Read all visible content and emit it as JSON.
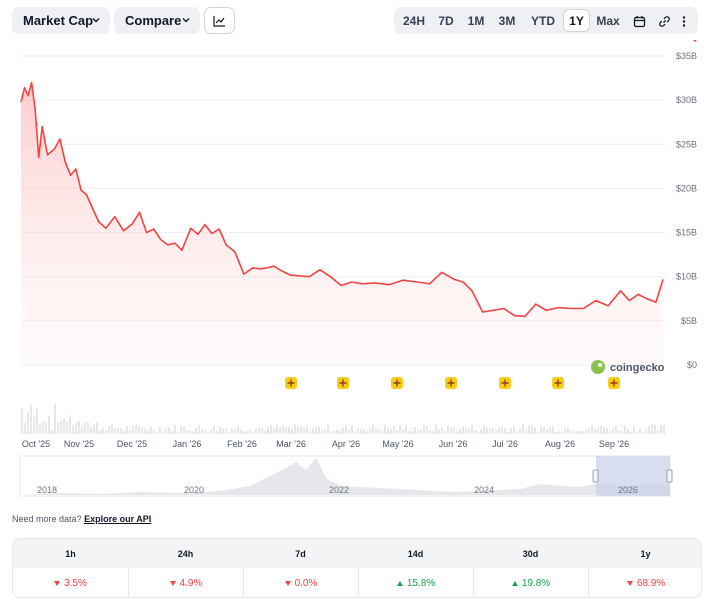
{
  "toolbar": {
    "metric_label": "Market Cap",
    "compare_label": "Compare",
    "chart_type_icon": "line-chart-icon",
    "ranges": [
      "24H",
      "7D",
      "1M",
      "3M",
      "YTD",
      "1Y",
      "Max"
    ],
    "active_range": "1Y",
    "tools": [
      "calendar-icon",
      "link-icon",
      "more-vertical-icon"
    ]
  },
  "brand": {
    "name": "coingecko"
  },
  "colors": {
    "line": "#ef4444",
    "area": "#fecaca",
    "nav_selection": "#c7d0e8",
    "up": "#16a34a",
    "down": "#ef4444"
  },
  "chart_data": {
    "type": "area",
    "title": "",
    "xlabel": "",
    "ylabel": "",
    "ylim": [
      0,
      35
    ],
    "y_unit": "B USD",
    "y_ticks": [
      "$35B",
      "$30B",
      "$25B",
      "$20B",
      "$15B",
      "$10B",
      "$5B",
      "$0"
    ],
    "x_ticks": [
      "Oct '25",
      "Nov '25",
      "Dec '25",
      "Jan '26",
      "Feb '26",
      "Mar '26",
      "Apr '26",
      "May '26",
      "Jun '26",
      "Jul '26",
      "Aug '26",
      "Sep '26"
    ],
    "grid": true,
    "series": [
      {
        "values_x": [
          "2025-09-28",
          "2025-09-30",
          "2025-10-02",
          "2025-10-04",
          "2025-10-06",
          "2025-10-08",
          "2025-10-10",
          "2025-10-13",
          "2025-10-17",
          "2025-10-20",
          "2025-10-23",
          "2025-10-26",
          "2025-10-29",
          "2025-11-01",
          "2025-11-04",
          "2025-11-08",
          "2025-11-11",
          "2025-11-15",
          "2025-11-20",
          "2025-11-25",
          "2025-11-30",
          "2025-12-04",
          "2025-12-08",
          "2025-12-12",
          "2025-12-16",
          "2025-12-20",
          "2025-12-24",
          "2025-12-28",
          "2026-01-02",
          "2026-01-06",
          "2026-01-10",
          "2026-01-14",
          "2026-01-18",
          "2026-01-22",
          "2026-01-27",
          "2026-02-01",
          "2026-02-06",
          "2026-02-10",
          "2026-02-14",
          "2026-02-18",
          "2026-02-22",
          "2026-02-27",
          "2026-03-04",
          "2026-03-10",
          "2026-03-16",
          "2026-03-22",
          "2026-03-28",
          "2026-04-03",
          "2026-04-09",
          "2026-04-16",
          "2026-04-24",
          "2026-05-02",
          "2026-05-10",
          "2026-05-17",
          "2026-05-24",
          "2026-05-31",
          "2026-06-05",
          "2026-06-10",
          "2026-06-16",
          "2026-06-22",
          "2026-06-28",
          "2026-07-04",
          "2026-07-10",
          "2026-07-16",
          "2026-07-22",
          "2026-07-29",
          "2026-08-05",
          "2026-08-12",
          "2026-08-19",
          "2026-08-26",
          "2026-09-02",
          "2026-09-07",
          "2026-09-12",
          "2026-09-17",
          "2026-09-22",
          "2026-09-26"
        ],
        "values": [
          29.8,
          31.4,
          30.5,
          32.0,
          29.0,
          23.5,
          27.0,
          23.8,
          24.5,
          25.6,
          23.0,
          21.5,
          22.2,
          19.8,
          19.3,
          17.5,
          16.2,
          15.5,
          16.8,
          15.2,
          16.0,
          17.3,
          15.0,
          15.4,
          14.2,
          13.6,
          13.8,
          13.0,
          15.5,
          14.8,
          15.9,
          14.9,
          15.4,
          13.6,
          12.8,
          10.3,
          11.0,
          10.9,
          11.0,
          11.2,
          10.7,
          10.2,
          10.1,
          10.0,
          10.8,
          10.0,
          9.0,
          9.4,
          9.2,
          9.3,
          9.1,
          9.6,
          9.4,
          9.2,
          10.5,
          9.7,
          9.4,
          8.4,
          6.0,
          6.2,
          6.4,
          5.6,
          5.5,
          6.9,
          6.2,
          6.5,
          6.4,
          6.4,
          7.3,
          6.7,
          8.4,
          7.3,
          8.0,
          7.5,
          7.1,
          9.7
        ]
      }
    ],
    "navigator": {
      "x_ticks": [
        "2018",
        "2020",
        "2022",
        "2024",
        "2026"
      ]
    }
  },
  "api": {
    "prompt": "Need more data?",
    "link": "Explore our API"
  },
  "performance": {
    "headers": [
      "1h",
      "24h",
      "7d",
      "14d",
      "30d",
      "1y"
    ],
    "values": [
      {
        "text": "3.5%",
        "dir": "down"
      },
      {
        "text": "4.9%",
        "dir": "down"
      },
      {
        "text": "0.0%",
        "dir": "down"
      },
      {
        "text": "15.8%",
        "dir": "up"
      },
      {
        "text": "19.8%",
        "dir": "up"
      },
      {
        "text": "68.9%",
        "dir": "down"
      }
    ]
  }
}
